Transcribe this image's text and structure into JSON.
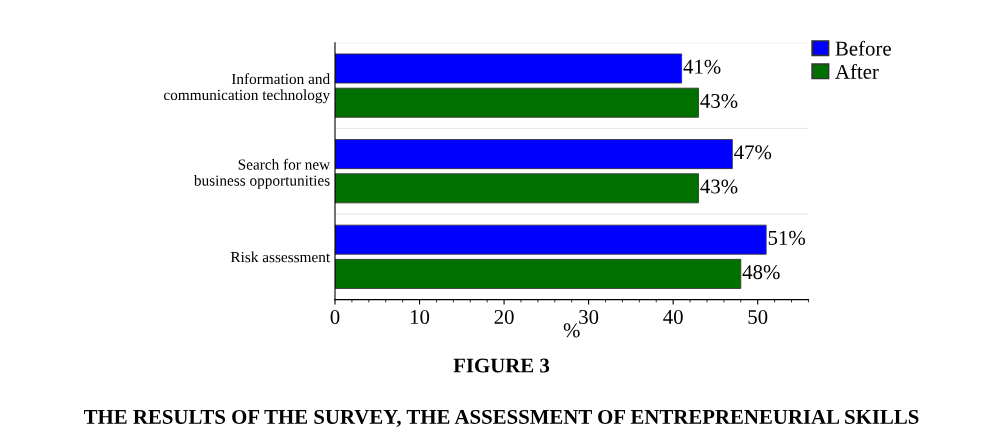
{
  "chart_data": {
    "type": "bar",
    "orientation": "horizontal",
    "title": "FIGURE 3",
    "subtitle": "THE RESULTS OF THE SURVEY, THE ASSESSMENT OF ENTREPRENEURIAL SKILLS",
    "xlabel": "%",
    "categories": [
      "Information and\ncommunication technology",
      "Search for new\nbusiness opportunities",
      "Risk assessment"
    ],
    "series": [
      {
        "name": "Before",
        "color": "#0000ff",
        "values": [
          41,
          47,
          51
        ],
        "value_labels": [
          "41%",
          "47%",
          "51%"
        ]
      },
      {
        "name": "After",
        "color": "#007000",
        "values": [
          43,
          43,
          48
        ],
        "value_labels": [
          "43%",
          "43%",
          "48%"
        ]
      }
    ],
    "xlim": [
      0,
      56
    ],
    "xticks": [
      0,
      10,
      20,
      30,
      40,
      50
    ],
    "grid": false,
    "legend": "top right"
  }
}
